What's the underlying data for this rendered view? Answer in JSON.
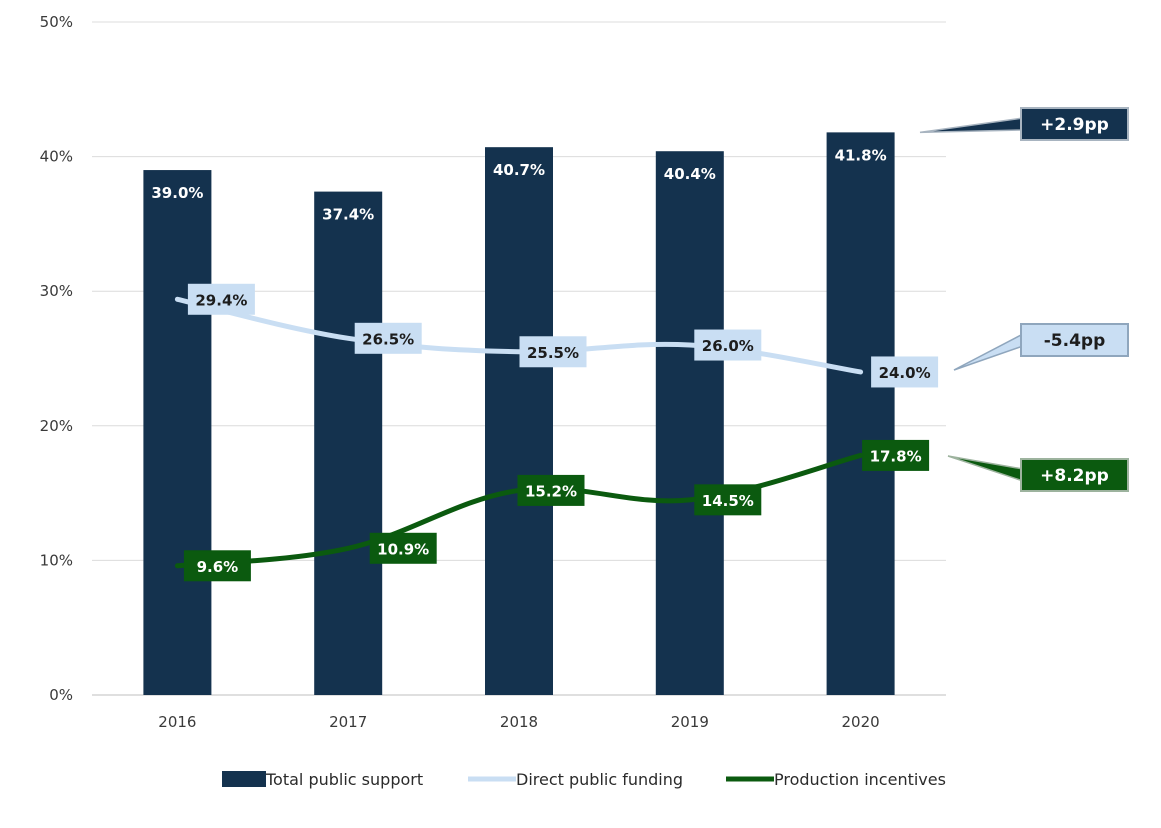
{
  "chart_data": {
    "type": "bar",
    "categories": [
      "2016",
      "2017",
      "2018",
      "2019",
      "2020"
    ],
    "ylim": [
      0,
      50
    ],
    "y_ticks": [
      "0%",
      "10%",
      "20%",
      "30%",
      "40%",
      "50%"
    ],
    "grid": true,
    "legend_position": "bottom",
    "series": [
      {
        "name": "Total public support",
        "type": "bar",
        "values": [
          39.0,
          37.4,
          40.7,
          40.4,
          41.8
        ],
        "labels": [
          "39.0%",
          "37.4%",
          "40.7%",
          "40.4%",
          "41.8%"
        ],
        "color": "#14324e",
        "change_label": "+2.9pp"
      },
      {
        "name": "Direct public funding",
        "type": "line",
        "values": [
          29.4,
          26.5,
          25.5,
          26.0,
          24.0
        ],
        "labels": [
          "29.4%",
          "26.5%",
          "25.5%",
          "26.0%",
          "24.0%"
        ],
        "color": "#c9def3",
        "change_label": "-5.4pp"
      },
      {
        "name": "Production incentives",
        "type": "line",
        "values": [
          9.6,
          10.9,
          15.2,
          14.5,
          17.8
        ],
        "labels": [
          "9.6%",
          "10.9%",
          "15.2%",
          "14.5%",
          "17.8%"
        ],
        "color": "#0b5a0f",
        "change_label": "+8.2pp"
      }
    ]
  }
}
